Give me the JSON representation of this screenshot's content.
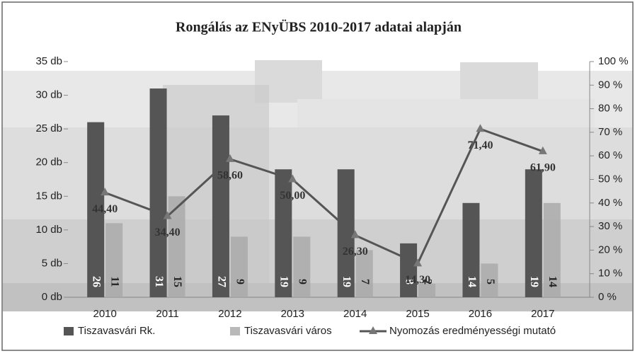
{
  "chart_data": {
    "type": "bar-line",
    "title": "Rongálás az ENyÜBS 2010-2017 adatai alapján",
    "categories": [
      "2010",
      "2011",
      "2012",
      "2013",
      "2014",
      "2015",
      "2016",
      "2017"
    ],
    "series": [
      {
        "name": "Tiszavasvári Rk.",
        "type": "bar",
        "color": "#555555",
        "values": [
          26,
          31,
          27,
          19,
          19,
          8,
          14,
          19
        ]
      },
      {
        "name": "Tiszavasvári város",
        "type": "bar",
        "color": "#a8a8a8",
        "values": [
          11,
          15,
          9,
          9,
          7,
          2,
          5,
          14
        ]
      },
      {
        "name": "Nyomozás eredményességi mutató",
        "type": "line",
        "axis": "y2",
        "color": "#555555",
        "values": [
          44.4,
          34.4,
          58.6,
          50.0,
          26.3,
          14.3,
          71.4,
          61.9
        ],
        "value_labels": [
          "44,40",
          "34,40",
          "58,60",
          "50,00",
          "26,30",
          "14,30",
          "71,40",
          "61,90"
        ]
      }
    ],
    "ylim": [
      0,
      35
    ],
    "yticks": [
      {
        "value": 0,
        "label": "0 db"
      },
      {
        "value": 5,
        "label": "5 db"
      },
      {
        "value": 10,
        "label": "10 db"
      },
      {
        "value": 15,
        "label": "15 db"
      },
      {
        "value": 20,
        "label": "20 db"
      },
      {
        "value": 25,
        "label": "25 db"
      },
      {
        "value": 30,
        "label": "30 db"
      },
      {
        "value": 35,
        "label": "35 db"
      }
    ],
    "y2lim": [
      0,
      100
    ],
    "y2ticks": [
      {
        "value": 0,
        "label": "0 %"
      },
      {
        "value": 10,
        "label": "10 %"
      },
      {
        "value": 20,
        "label": "20 %"
      },
      {
        "value": 30,
        "label": "30 %"
      },
      {
        "value": 40,
        "label": "40 %"
      },
      {
        "value": 50,
        "label": "50 %"
      },
      {
        "value": 60,
        "label": "60 %"
      },
      {
        "value": 70,
        "label": "70 %"
      },
      {
        "value": 80,
        "label": "80 %"
      },
      {
        "value": 90,
        "label": "90 %"
      },
      {
        "value": 100,
        "label": "100 %"
      }
    ],
    "legend": "bottom"
  }
}
